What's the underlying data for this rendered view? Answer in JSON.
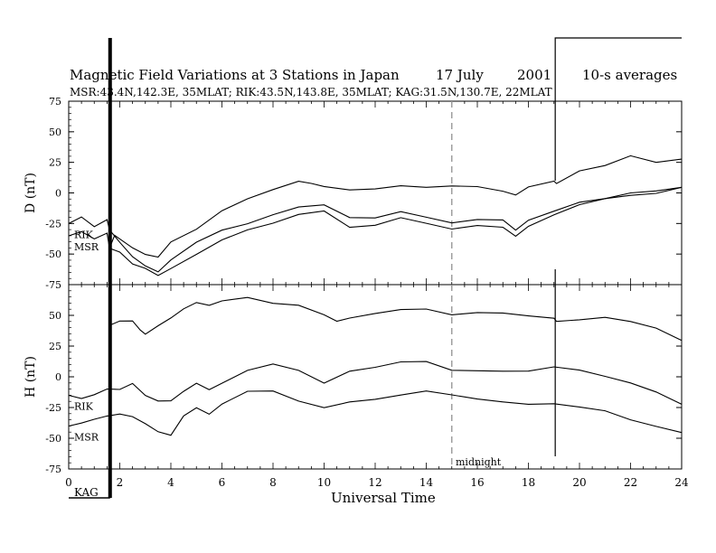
{
  "title": "Magnetic Field Variations at 3 Stations in Japan",
  "date": "17 July",
  "year": "2001",
  "averaging": "10-s averages",
  "stations_line": "MSR:43.4N,142.3E, 35MLAT;  RIK:43.5N,143.8E, 35MLAT;  KAG:31.5N,130.7E, 22MLAT",
  "annotations": {
    "midnight": "midnight",
    "kag": "KAG"
  },
  "chart_data": [
    {
      "type": "line",
      "panel": "D",
      "ylabel": "D (nT)",
      "xlabel": "",
      "xlim": [
        0,
        24
      ],
      "ylim": [
        -75,
        75
      ],
      "yticks": [
        75,
        50,
        25,
        0,
        -25,
        -50,
        -75
      ],
      "series_labels": [
        "RIK",
        "MSR"
      ],
      "series": [
        {
          "name": "KAG",
          "x": [
            1.6,
            1.8,
            2.0,
            2.5,
            3.0,
            3.5,
            4.0,
            5.0,
            6.0,
            7.0,
            8.0,
            9.0,
            9.5,
            10.0,
            11.0,
            12.0,
            13.0,
            14.0,
            15.0,
            16.0,
            17.0,
            17.5,
            18.0,
            19.0,
            19.1,
            20.0,
            21.0,
            22.0,
            23.0,
            24.0
          ],
          "y": [
            -45,
            -35,
            -38,
            -45,
            -50,
            -52,
            -40,
            -30,
            -15,
            -5,
            3,
            10,
            8,
            5,
            2,
            3,
            6,
            5,
            6,
            5,
            1,
            -2,
            5,
            10,
            8,
            18,
            22,
            30,
            25,
            28
          ]
        },
        {
          "name": "RIK",
          "x": [
            0.0,
            0.5,
            1.0,
            1.5,
            1.6,
            2.0,
            2.5,
            3.0,
            3.5,
            4.0,
            5.0,
            6.0,
            7.0,
            8.0,
            9.0,
            10.0,
            11.0,
            12.0,
            13.0,
            14.0,
            15.0,
            16.0,
            17.0,
            17.5,
            18.0,
            19.0,
            20.0,
            21.0,
            22.0,
            23.0,
            24.0
          ],
          "y": [
            -25,
            -20,
            -28,
            -22,
            -30,
            -40,
            -52,
            -60,
            -65,
            -55,
            -40,
            -30,
            -25,
            -18,
            -12,
            -10,
            -20,
            -20,
            -15,
            -20,
            -25,
            -22,
            -22,
            -30,
            -22,
            -15,
            -8,
            -5,
            -2,
            0,
            5
          ]
        },
        {
          "name": "MSR",
          "x": [
            0.0,
            0.5,
            1.0,
            1.5,
            1.6,
            2.0,
            2.5,
            3.0,
            3.5,
            4.0,
            5.0,
            6.0,
            7.0,
            8.0,
            9.0,
            10.0,
            11.0,
            12.0,
            13.0,
            14.0,
            15.0,
            16.0,
            17.0,
            17.5,
            18.0,
            19.0,
            20.0,
            21.0,
            22.0,
            23.0,
            24.0
          ],
          "y": [
            -35,
            -32,
            -38,
            -33,
            -45,
            -48,
            -58,
            -62,
            -68,
            -62,
            -50,
            -38,
            -30,
            -25,
            -18,
            -15,
            -28,
            -26,
            -20,
            -25,
            -30,
            -27,
            -28,
            -35,
            -27,
            -18,
            -10,
            -5,
            0,
            2,
            5
          ]
        }
      ]
    },
    {
      "type": "line",
      "panel": "H",
      "ylabel": "H (nT)",
      "xlabel": "Universal Time",
      "xlim": [
        0,
        24
      ],
      "ylim": [
        -75,
        75
      ],
      "yticks": [
        75,
        50,
        25,
        0,
        -25,
        -50,
        -75
      ],
      "xticks": [
        0,
        2,
        4,
        6,
        8,
        10,
        12,
        14,
        16,
        18,
        20,
        22,
        24
      ],
      "series_labels": [
        "RIK",
        "MSR"
      ],
      "series": [
        {
          "name": "KAG",
          "x": [
            1.6,
            2.0,
            2.5,
            2.8,
            3.0,
            3.5,
            4.0,
            4.5,
            5.0,
            5.5,
            6.0,
            7.0,
            8.0,
            9.0,
            10.0,
            10.5,
            11.0,
            12.0,
            13.0,
            14.0,
            15.0,
            16.0,
            17.0,
            18.0,
            19.0,
            19.1,
            20.0,
            21.0,
            22.0,
            23.0,
            24.0
          ],
          "y": [
            42,
            45,
            45,
            38,
            35,
            42,
            48,
            55,
            60,
            58,
            62,
            65,
            60,
            58,
            50,
            45,
            48,
            52,
            55,
            55,
            50,
            52,
            52,
            50,
            48,
            45,
            46,
            48,
            45,
            40,
            30
          ]
        },
        {
          "name": "RIK",
          "x": [
            0.0,
            0.5,
            1.0,
            1.5,
            2.0,
            2.5,
            3.0,
            3.5,
            4.0,
            4.5,
            5.0,
            5.5,
            6.0,
            7.0,
            8.0,
            9.0,
            10.0,
            11.0,
            12.0,
            13.0,
            14.0,
            15.0,
            16.0,
            17.0,
            18.0,
            19.0,
            20.0,
            21.0,
            22.0,
            23.0,
            24.0
          ],
          "y": [
            -15,
            -18,
            -15,
            -10,
            -10,
            -5,
            -15,
            -20,
            -20,
            -12,
            -5,
            -10,
            -5,
            5,
            10,
            5,
            -5,
            5,
            8,
            12,
            12,
            5,
            5,
            5,
            5,
            8,
            5,
            0,
            -5,
            -12,
            -22
          ]
        },
        {
          "name": "MSR",
          "x": [
            0.0,
            0.5,
            1.0,
            1.5,
            2.0,
            2.5,
            3.0,
            3.5,
            4.0,
            4.5,
            5.0,
            5.5,
            6.0,
            7.0,
            8.0,
            9.0,
            10.0,
            11.0,
            12.0,
            13.0,
            14.0,
            15.0,
            16.0,
            17.0,
            18.0,
            19.0,
            20.0,
            21.0,
            22.0,
            23.0,
            24.0
          ],
          "y": [
            -40,
            -38,
            -35,
            -32,
            -30,
            -32,
            -38,
            -45,
            -48,
            -32,
            -25,
            -30,
            -22,
            -12,
            -12,
            -20,
            -25,
            -20,
            -18,
            -15,
            -12,
            -15,
            -18,
            -20,
            -22,
            -22,
            -25,
            -28,
            -35,
            -40,
            -45
          ]
        }
      ]
    }
  ]
}
